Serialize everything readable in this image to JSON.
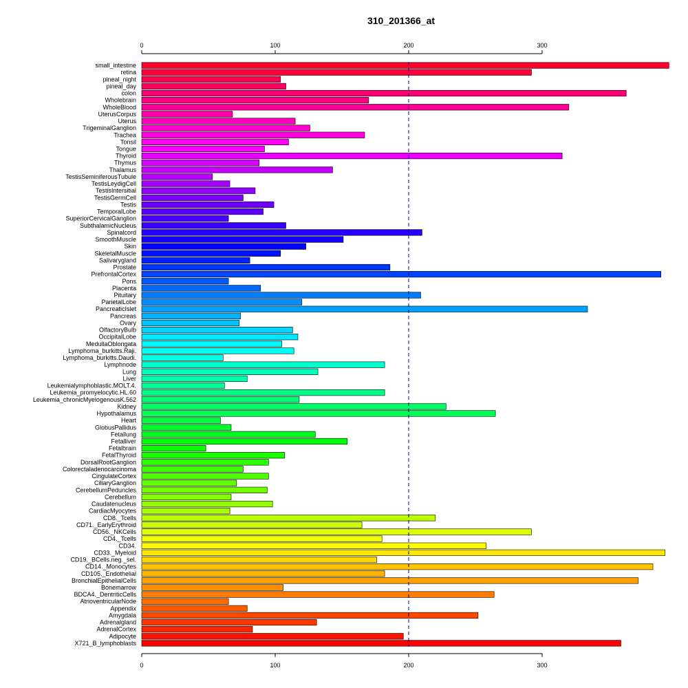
{
  "chart_data": {
    "type": "bar",
    "orientation": "horizontal",
    "title": "310_201366_at",
    "xlabel": "",
    "ylabel": "",
    "xlim": [
      0,
      395
    ],
    "xticks": [
      0,
      100,
      200,
      300
    ],
    "reference_line": 200,
    "grid": false,
    "categories": [
      "small_intestine",
      "retina",
      "pineal_night",
      "pineal_day",
      "colon",
      "Wholebrain",
      "WholeBlood",
      "UterusCorpus",
      "Uterus",
      "TrigeminalGanglion",
      "Trachea",
      "Tonsil",
      "Tongue",
      "Thyroid",
      "Thymus",
      "Thalamus",
      "TestisSeminiferousTubule",
      "TestisLeydigCell",
      "TestisIntersitial",
      "TestisGermCell",
      "Testis",
      "TemporalLobe",
      "SuperiorCervicalGanglion",
      "SubthalamicNucleus",
      "Spinalcord",
      "SmoothMuscle",
      "Skin",
      "SkeletalMuscle",
      "Salivarygland",
      "Prostate",
      "PrefrontalCortex",
      "Pons",
      "Placenta",
      "Pituitary",
      "ParietalLobe",
      "PancreaticIslet",
      "Pancreas",
      "Ovary",
      "OlfactoryBulb",
      "OccipitalLobe",
      "MedullaOblongata",
      "Lymphoma_burkitts.Raji.",
      "Lymphoma_burkitts.Daudi.",
      "Lymphnode",
      "Lung",
      "Liver",
      "Leukemialymphoblastic.MOLT.4.",
      "Leukemia_promyelocytic.HL.60",
      "Leukemia_chronicMyelogenousK.562",
      "Kidney",
      "Hypothalamus",
      "Heart",
      "GlobusPallidus",
      "Fetallung",
      "Fetalliver",
      "Fetalbrain",
      "FetalThyroid",
      "DorsalRootGanglion",
      "Colorectaladenocarcinoma",
      "CingulateCortex",
      "CiliaryGanglion",
      "CerebellumPeduncles",
      "Cerebellum",
      "Caudatenucleus",
      "CardiacMyocytes",
      "CD8._Tcells",
      "CD71._EarlyErythroid",
      "CD56._NKCells",
      "CD4._Tcells",
      "CD34.",
      "CD33._Myeloid",
      "CD19._BCells.neg._sel.",
      "CD14._Monocytes",
      "CD105._Endothelial",
      "BronchialEpithelialCells",
      "Bonemarrow",
      "BDCA4._DentriticCells",
      "AtrioventricularNode",
      "Appendix",
      "Amygdala",
      "Adrenalgland",
      "AdrenalCortex",
      "Adipocyte",
      "X721_B_lymphoblasts"
    ],
    "values": [
      395,
      292,
      104,
      108,
      363,
      170,
      320,
      68,
      115,
      126,
      167,
      110,
      92,
      315,
      88,
      143,
      53,
      66,
      85,
      76,
      99,
      91,
      65,
      108,
      210,
      151,
      123,
      104,
      81,
      186,
      389,
      65,
      89,
      209,
      120,
      334,
      74,
      73,
      113,
      117,
      105,
      114,
      61,
      182,
      132,
      79,
      62,
      182,
      118,
      228,
      265,
      59,
      67,
      130,
      154,
      48,
      107,
      95,
      76,
      95,
      71,
      94,
      67,
      98,
      66,
      220,
      165,
      292,
      180,
      258,
      392,
      176,
      383,
      182,
      372,
      106,
      264,
      65,
      79,
      252,
      131,
      83,
      196,
      359
    ]
  }
}
